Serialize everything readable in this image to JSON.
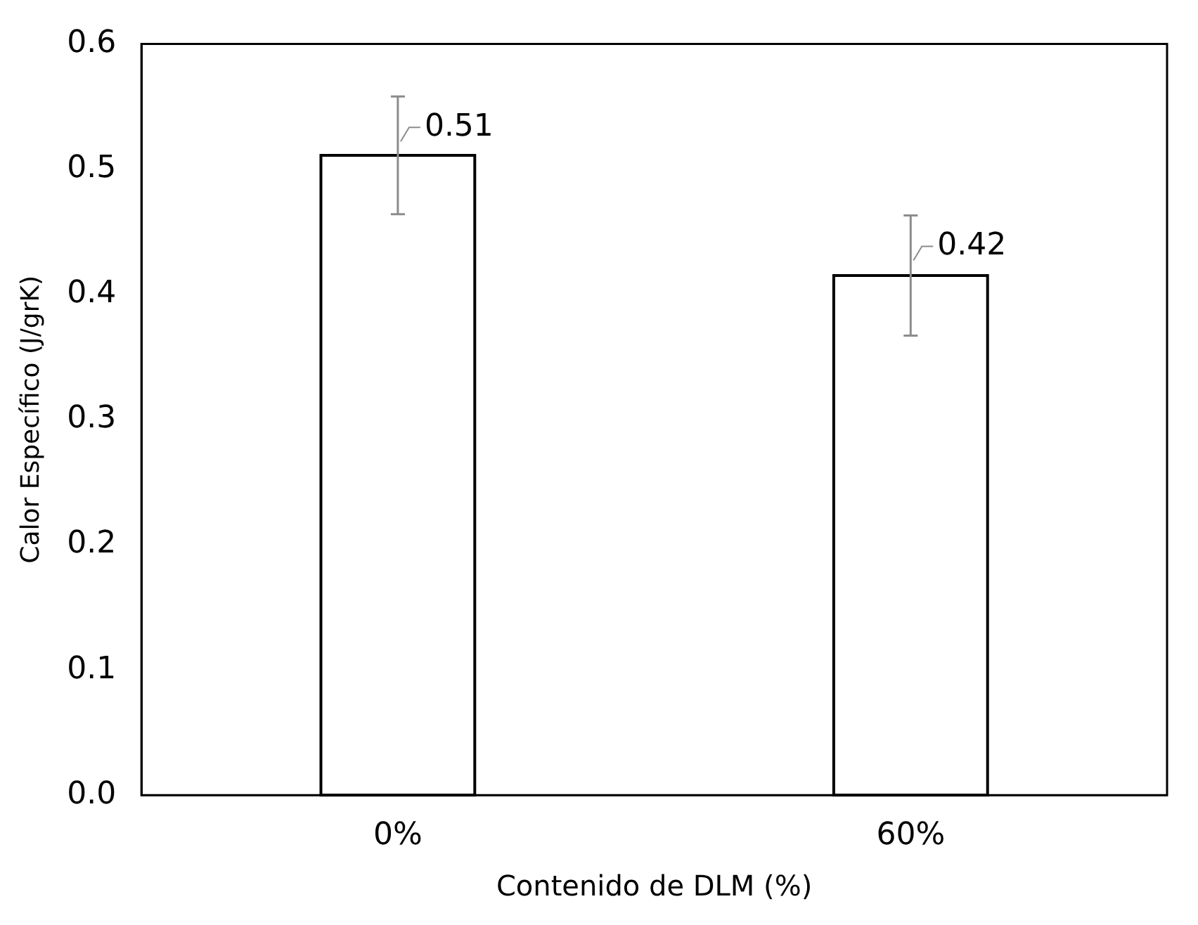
{
  "chart_data": {
    "type": "bar",
    "xlabel": "Contenido de DLM (%)",
    "ylabel": "Calor Específico (J/grK)",
    "categories": [
      "0%",
      "60%"
    ],
    "series": [
      {
        "color": "#000000",
        "values": [
          0.511,
          0.415
        ],
        "errors": [
          0.047,
          0.048
        ],
        "value_labels": [
          "0.51",
          "0.42"
        ]
      }
    ],
    "ylim": [
      0,
      0.6
    ],
    "yticks": [
      {
        "value": 0,
        "label": "0.0"
      },
      0.1,
      0.2,
      0.3,
      0.4,
      0.5,
      0.6
    ]
  }
}
